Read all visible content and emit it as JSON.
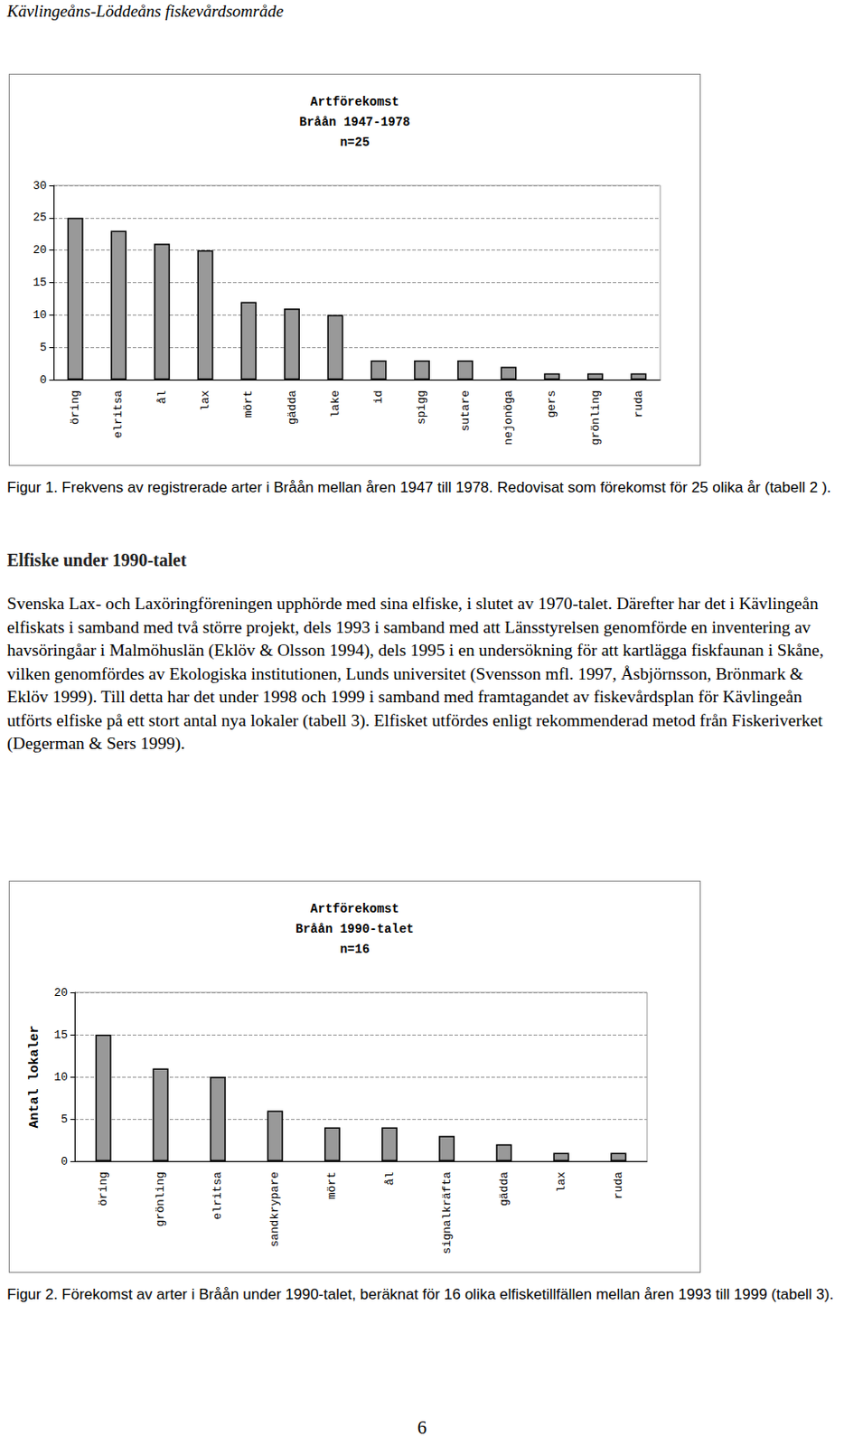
{
  "header": "Kävlingeåns-Löddeåns fiskevårdsområde",
  "chart_data": [
    {
      "type": "bar",
      "title": "Artförekomst\nBråån 1947-1978\nn=25",
      "categories": [
        "öring",
        "elritsa",
        "ål",
        "lax",
        "mört",
        "gädda",
        "lake",
        "id",
        "spigg",
        "sutare",
        "nejonöga",
        "gers",
        "grönling",
        "ruda"
      ],
      "values": [
        25,
        23,
        21,
        20,
        12,
        11,
        10,
        3,
        3,
        3,
        2,
        1,
        1,
        1
      ],
      "color": "#999999",
      "ylim": [
        0,
        30
      ],
      "yticks": [
        0,
        5,
        10,
        15,
        20,
        25,
        30
      ],
      "grid": true
    },
    {
      "type": "bar",
      "title": "Artförekomst\nBråån 1990-talet\nn=16",
      "ylabel": "Antal lokaler",
      "categories": [
        "öring",
        "grönling",
        "elritsa",
        "sandkrypare",
        "mört",
        "ål",
        "signalkräfta",
        "gädda",
        "lax",
        "ruda"
      ],
      "values": [
        15,
        11,
        10,
        6,
        4,
        4,
        3,
        2,
        1,
        1
      ],
      "color": "#999999",
      "ylim": [
        0,
        20
      ],
      "yticks": [
        0,
        5,
        10,
        15,
        20
      ],
      "grid": true
    }
  ],
  "captions": [
    "Figur 1. Frekvens av registrerade arter i Bråån mellan åren 1947 till 1978. Redovisat som förekomst för 25 olika år (tabell 2 ).",
    "Figur 2. Förekomst av arter i Bråån under 1990-talet, beräknat för 16 olika elfisketillfällen mellan åren 1993 till 1999 (tabell 3)."
  ],
  "section_title": "Elfiske under 1990-talet",
  "body": "Svenska Lax- och Laxöringföreningen upphörde med sina elfiske, i slutet av 1970-talet. Därefter har det i Kävlingeån elfiskats i samband med två större projekt, dels 1993 i samband med att Länsstyrelsen genomförde en inventering av havsöringåar i Malmöhuslän (Eklöv & Olsson 1994), dels 1995 i en undersökning för att kartlägga fiskfaunan i Skåne, vilken genomfördes av Ekologiska institutionen, Lunds universitet (Svensson mfl. 1997, Åsbjörnsson, Brönmark & Eklöv 1999). Till detta har det under 1998 och 1999 i samband med framtagandet av fiskevårdsplan för Kävlingeån utförts elfiske på ett stort antal nya lokaler (tabell 3). Elfisket utfördes enligt rekommenderad metod från Fiskeriverket (Degerman & Sers 1999).",
  "page_number": 6
}
